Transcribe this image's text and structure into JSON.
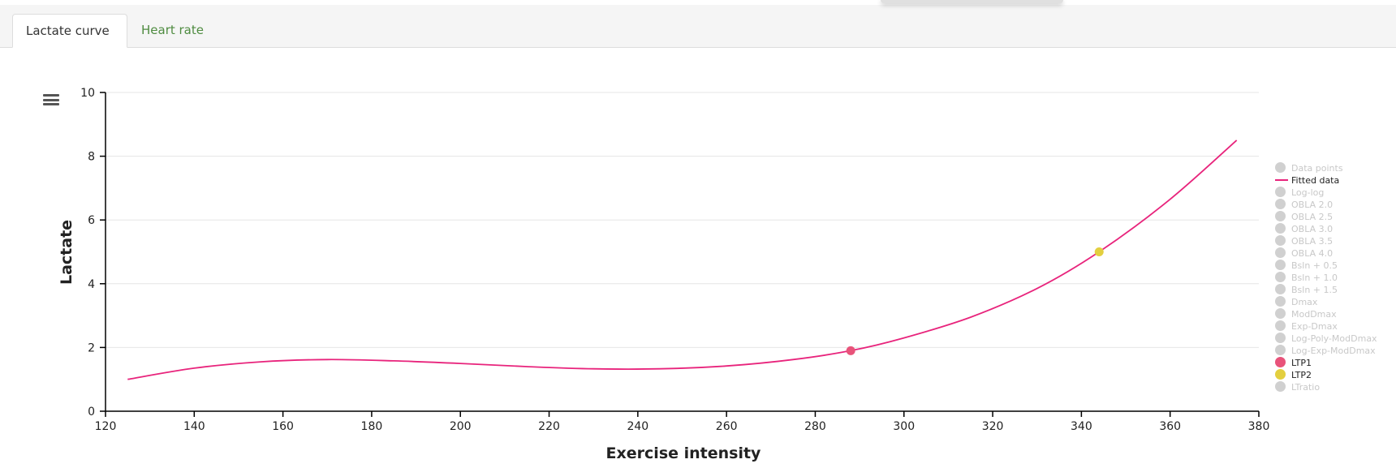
{
  "tabs": [
    {
      "label": "Lactate curve",
      "active": true
    },
    {
      "label": "Heart rate",
      "active": false
    }
  ],
  "chart_data": {
    "type": "line",
    "title": "",
    "xlabel": "Exercise intensity",
    "ylabel": "Lactate",
    "xlim": [
      120,
      380
    ],
    "ylim": [
      0,
      10
    ],
    "xticks": [
      120,
      140,
      160,
      180,
      200,
      220,
      240,
      260,
      280,
      300,
      320,
      340,
      360,
      380
    ],
    "yticks": [
      0,
      2,
      4,
      6,
      8,
      10
    ],
    "grid": "horizontal",
    "legend_position": "right",
    "fitted_color": "#e8247c",
    "series": [
      {
        "name": "Fitted data",
        "x": [
          125,
          140,
          155,
          170,
          185,
          200,
          215,
          230,
          245,
          260,
          275,
          288,
          300,
          315,
          330,
          344,
          360,
          375
        ],
        "y": [
          1.0,
          1.35,
          1.55,
          1.62,
          1.58,
          1.5,
          1.4,
          1.33,
          1.33,
          1.42,
          1.62,
          1.9,
          2.3,
          2.95,
          3.85,
          5.0,
          6.65,
          8.5
        ]
      }
    ],
    "markers": [
      {
        "name": "LTP1",
        "x": 288,
        "y": 1.9,
        "color": "#e8537a"
      },
      {
        "name": "LTP2",
        "x": 344,
        "y": 5.0,
        "color": "#e3cf3f"
      }
    ],
    "legend": [
      {
        "label": "Data points",
        "visible": false,
        "symbol": "dot"
      },
      {
        "label": "Fitted data",
        "visible": true,
        "symbol": "line",
        "color": "#e8247c"
      },
      {
        "label": "Log-log",
        "visible": false,
        "symbol": "dot"
      },
      {
        "label": "OBLA 2.0",
        "visible": false,
        "symbol": "dot"
      },
      {
        "label": "OBLA 2.5",
        "visible": false,
        "symbol": "dot"
      },
      {
        "label": "OBLA 3.0",
        "visible": false,
        "symbol": "dot"
      },
      {
        "label": "OBLA 3.5",
        "visible": false,
        "symbol": "dot"
      },
      {
        "label": "OBLA 4.0",
        "visible": false,
        "symbol": "dot"
      },
      {
        "label": "Bsln + 0.5",
        "visible": false,
        "symbol": "dot"
      },
      {
        "label": "Bsln + 1.0",
        "visible": false,
        "symbol": "dot"
      },
      {
        "label": "Bsln + 1.5",
        "visible": false,
        "symbol": "dot"
      },
      {
        "label": "Dmax",
        "visible": false,
        "symbol": "dot"
      },
      {
        "label": "ModDmax",
        "visible": false,
        "symbol": "dot"
      },
      {
        "label": "Exp-Dmax",
        "visible": false,
        "symbol": "dot"
      },
      {
        "label": "Log-Poly-ModDmax",
        "visible": false,
        "symbol": "dot"
      },
      {
        "label": "Log-Exp-ModDmax",
        "visible": false,
        "symbol": "dot"
      },
      {
        "label": "LTP1",
        "visible": true,
        "symbol": "dot",
        "color": "#e8537a"
      },
      {
        "label": "LTP2",
        "visible": true,
        "symbol": "dot",
        "color": "#e3cf3f"
      },
      {
        "label": "LTratio",
        "visible": false,
        "symbol": "dot"
      }
    ]
  },
  "icons": {
    "chart_menu": "hamburger-menu-icon"
  }
}
